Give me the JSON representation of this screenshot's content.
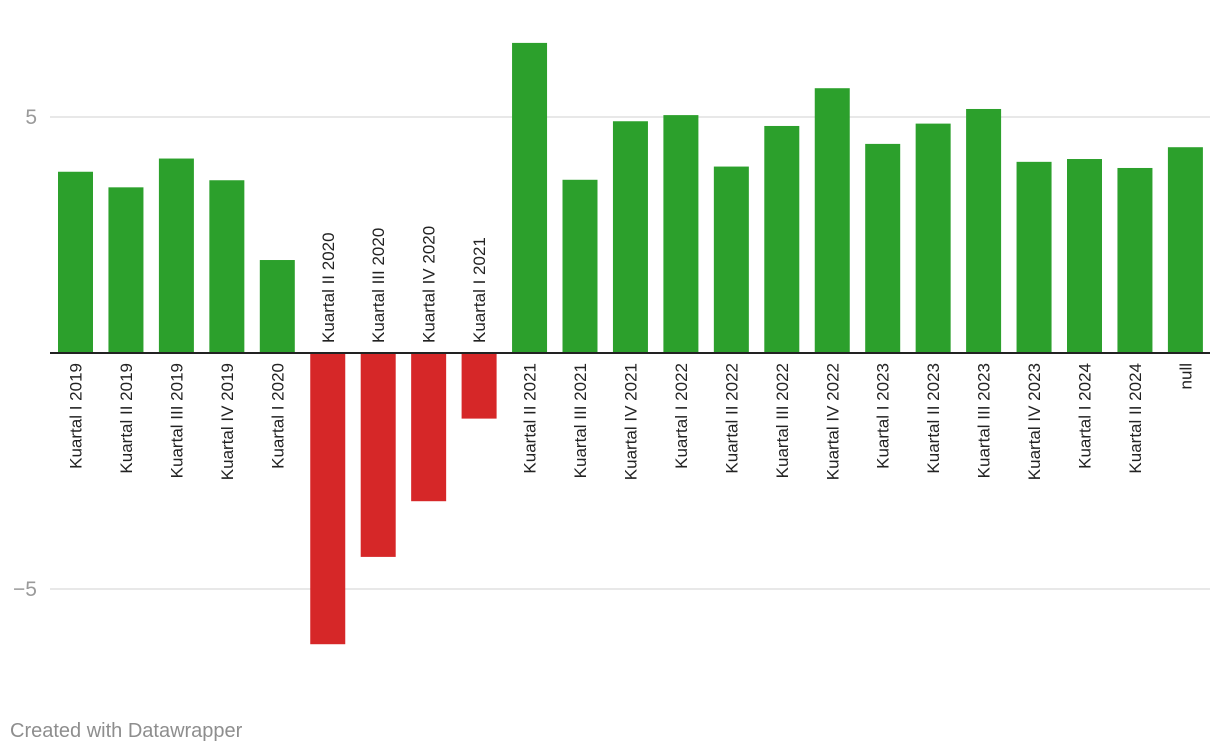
{
  "chart_data": {
    "type": "bar",
    "categories": [
      "Kuartal I 2019",
      "Kuartal II 2019",
      "Kuartal III 2019",
      "Kuartal IV 2019",
      "Kuartal I 2020",
      "Kuartal II 2020",
      "Kuartal III 2020",
      "Kuartal IV 2020",
      "Kuartal I 2021",
      "Kuartal II 2021",
      "Kuartal III 2021",
      "Kuartal IV 2021",
      "Kuartal I 2022",
      "Kuartal II 2022",
      "Kuartal III 2022",
      "Kuartal IV 2022",
      "Kuartal I 2023",
      "Kuartal II 2023",
      "Kuartal III 2023",
      "Kuartal IV 2023",
      "Kuartal I 2024",
      "Kuartal II 2024",
      "null"
    ],
    "values": [
      3.84,
      3.51,
      4.12,
      3.66,
      1.97,
      -6.17,
      -4.32,
      -3.14,
      -1.39,
      6.57,
      3.67,
      4.91,
      5.04,
      3.95,
      4.81,
      5.61,
      4.43,
      4.86,
      5.17,
      4.05,
      4.11,
      3.92,
      4.36
    ],
    "yticks": [
      5,
      -5
    ],
    "ytick_labels": [
      "5",
      "−5"
    ],
    "ylim": [
      -7,
      7.5
    ],
    "grid": true,
    "colors": {
      "positive": "#2ca02c",
      "negative": "#d62728",
      "grid": "#e0e0e0",
      "baseline": "#222222"
    }
  },
  "footer": {
    "credit": "Created with Datawrapper"
  }
}
